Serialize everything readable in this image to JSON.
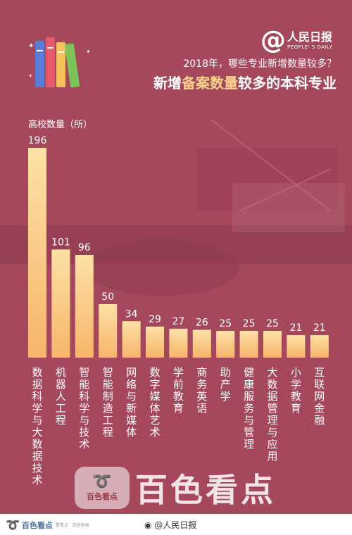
{
  "logo": {
    "cn": "人民日报",
    "en": "PEOPLE' S DAILY"
  },
  "subtitle": "2018年，哪些专业新增数量较多？",
  "title": {
    "pre": "新增",
    "highlight": "备案数量",
    "post": "较多的本科专业"
  },
  "watermark": {
    "small": "百色看点",
    "big": "百色看点"
  },
  "footer": {
    "brand": "百色看点",
    "tag": "看看点 · 百色新闻",
    "weibo": "@人民日报"
  },
  "colors": {
    "background": "#a5485c",
    "bar_top": "#fde1a6",
    "bar_bottom": "#f7b56a",
    "highlight": "#f9d38e"
  },
  "chart_data": {
    "type": "bar",
    "ylabel": "高校数量（所）",
    "categories": [
      "数据科学与大数据技术",
      "机器人工程",
      "智能科学与技术",
      "智能制造工程",
      "网络与新媒体",
      "数字媒体艺术",
      "学前教育",
      "商务英语",
      "助产学",
      "健康服务与管理",
      "大数据管理与应用",
      "小学教育",
      "互联网金融"
    ],
    "values": [
      196,
      101,
      96,
      50,
      34,
      29,
      27,
      26,
      25,
      25,
      25,
      21,
      21
    ],
    "ylim": [
      0,
      196
    ],
    "grid": false,
    "legend": "none"
  }
}
